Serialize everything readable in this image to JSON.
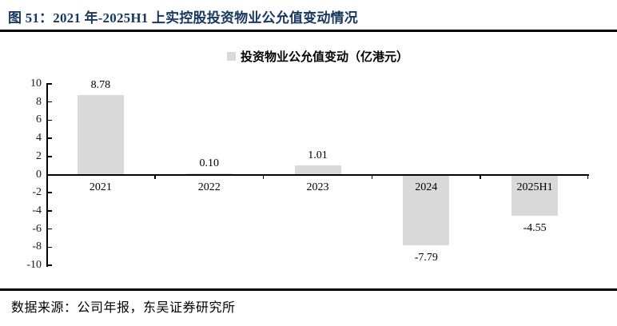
{
  "page": {
    "title": "图 51：2021 年-2025H1 上实控股投资物业公允值变动情况",
    "source": "数据来源：公司年报，东吴证券研究所"
  },
  "chart_data": {
    "type": "bar",
    "title": "图 51：2021 年-2025H1 上实控股投资物业公允值变动情况",
    "legend": [
      {
        "label": "投资物业公允值变动（亿港元）",
        "color": "#D9D9D9"
      }
    ],
    "legend_position": "top-center",
    "categories": [
      "2021",
      "2022",
      "2023",
      "2024",
      "2025H1"
    ],
    "values": [
      8.78,
      0.1,
      1.01,
      -7.79,
      -4.55
    ],
    "data_labels": [
      "8.78",
      "0.10",
      "1.01",
      "-7.79",
      "-4.55"
    ],
    "xlabel": "",
    "ylabel": "",
    "unit": "亿港元",
    "ylim": [
      -10,
      10
    ],
    "yticks": [
      10,
      8,
      6,
      4,
      2,
      0,
      -2,
      -4,
      -6,
      -8,
      -10
    ],
    "grid": false,
    "bar_color": "#D9D9D9"
  },
  "colors": {
    "title": "#17375E",
    "rule": "#000000",
    "axis": "#000000",
    "bar": "#D9D9D9",
    "text": "#000000"
  }
}
